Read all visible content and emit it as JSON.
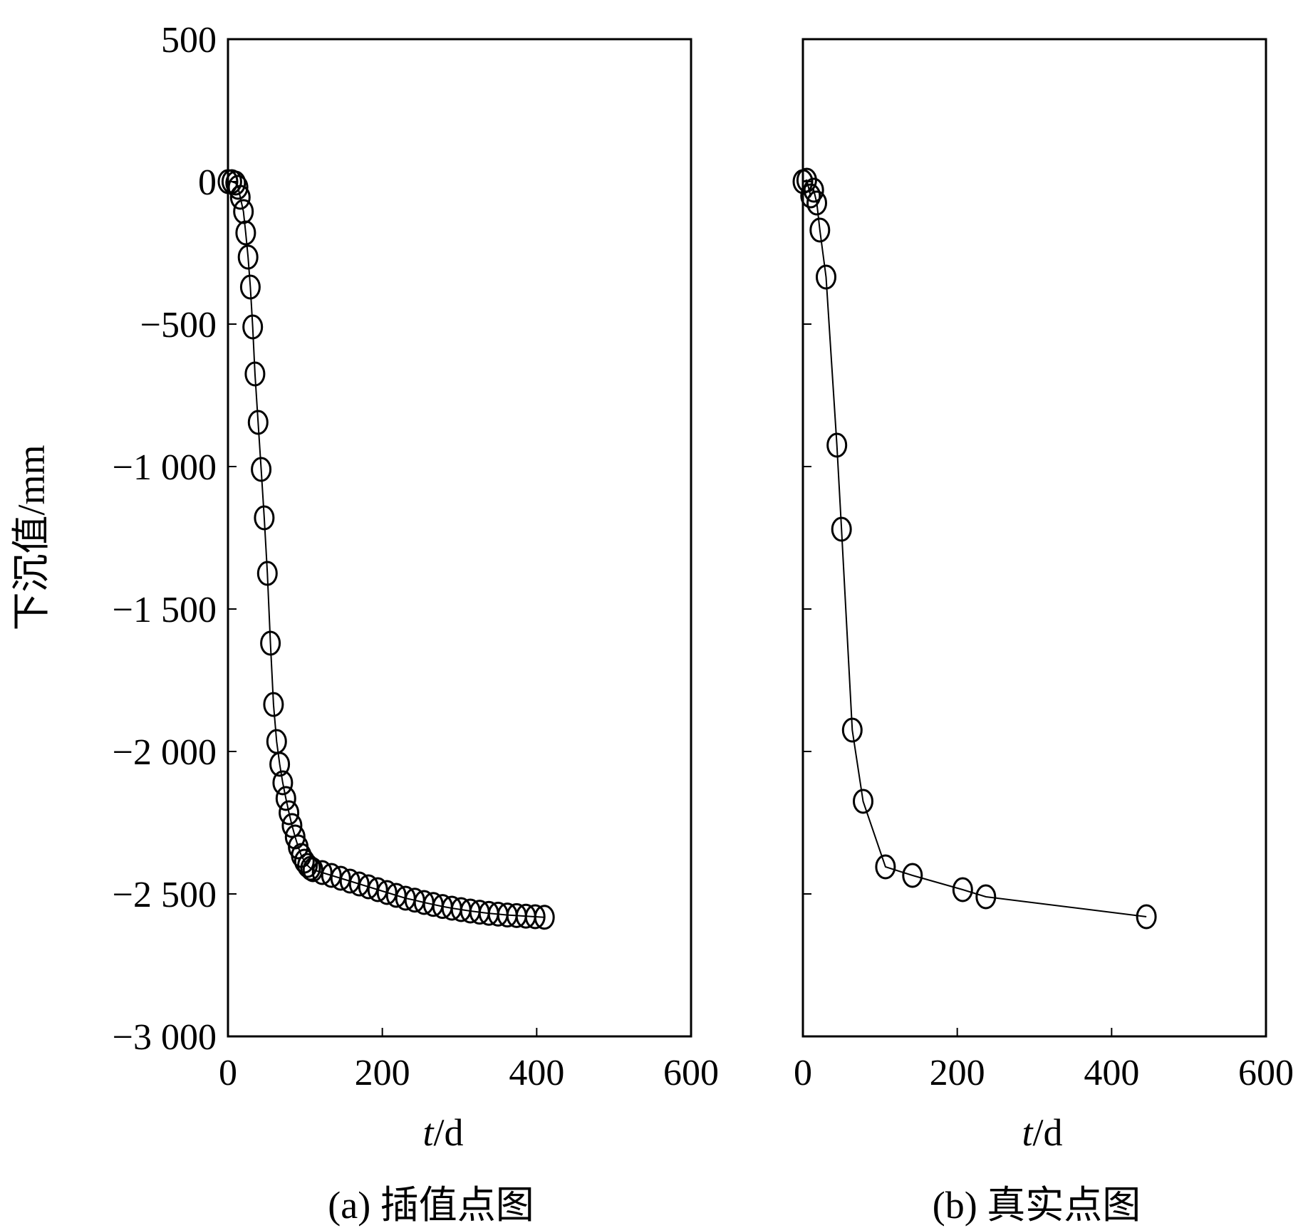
{
  "chart_data": [
    {
      "type": "line",
      "ylabel": "下沉值/mm",
      "xlabel": "t/d",
      "xlabel_italic": "t",
      "xlabel_unit": "/d",
      "caption": "(a) 插值点图",
      "xlim": [
        0,
        600
      ],
      "ylim": [
        -3000,
        500
      ],
      "xticks": [
        0,
        200,
        400,
        600
      ],
      "xtick_labels": [
        "0",
        "200",
        "400",
        "600"
      ],
      "yticks": [
        500,
        0,
        -500,
        -1000,
        -1500,
        -2000,
        -2500,
        -3000
      ],
      "ytick_labels": [
        "500",
        "0",
        "−500",
        "−1 000",
        "−1 500",
        "−2 000",
        "−2 500",
        "−3 000"
      ],
      "marker": "open-circle",
      "series": [
        {
          "x": [
            0,
            5,
            10,
            13,
            16,
            20,
            23,
            26,
            29,
            32,
            35,
            39,
            43,
            47,
            51,
            55,
            59,
            63,
            67,
            71,
            75,
            79,
            83,
            87,
            91,
            95,
            99,
            103,
            107,
            110,
            122,
            134,
            146,
            158,
            170,
            182,
            194,
            206,
            218,
            230,
            242,
            254,
            266,
            278,
            290,
            302,
            314,
            326,
            338,
            350,
            362,
            374,
            386,
            398,
            410
          ],
          "y": [
            0,
            0,
            -5,
            -20,
            -55,
            -105,
            -180,
            -265,
            -370,
            -510,
            -675,
            -845,
            -1010,
            -1180,
            -1375,
            -1620,
            -1835,
            -1965,
            -2045,
            -2110,
            -2165,
            -2215,
            -2260,
            -2300,
            -2335,
            -2365,
            -2385,
            -2400,
            -2410,
            -2415,
            -2425,
            -2435,
            -2445,
            -2455,
            -2465,
            -2475,
            -2485,
            -2495,
            -2505,
            -2515,
            -2522,
            -2530,
            -2537,
            -2544,
            -2550,
            -2555,
            -2560,
            -2564,
            -2568,
            -2571,
            -2574,
            -2576,
            -2578,
            -2580,
            -2582
          ]
        }
      ]
    },
    {
      "type": "line",
      "xlabel": "t/d",
      "xlabel_italic": "t",
      "xlabel_unit": "/d",
      "caption": "(b) 真实点图",
      "xlim": [
        0,
        600
      ],
      "ylim": [
        -3000,
        500
      ],
      "xticks": [
        0,
        200,
        400,
        600
      ],
      "xtick_labels": [
        "0",
        "200",
        "400",
        "600"
      ],
      "yticks": [
        500,
        0,
        -500,
        -1000,
        -1500,
        -2000,
        -2500,
        -3000
      ],
      "marker": "open-circle",
      "series": [
        {
          "x": [
            0,
            5,
            10,
            14,
            18,
            22,
            30,
            44,
            50,
            64,
            78,
            107,
            142,
            207,
            237,
            445
          ],
          "y": [
            0,
            5,
            -50,
            -30,
            -75,
            -170,
            -335,
            -925,
            -1220,
            -1925,
            -2175,
            -2405,
            -2435,
            -2485,
            -2510,
            -2580
          ]
        }
      ]
    }
  ]
}
